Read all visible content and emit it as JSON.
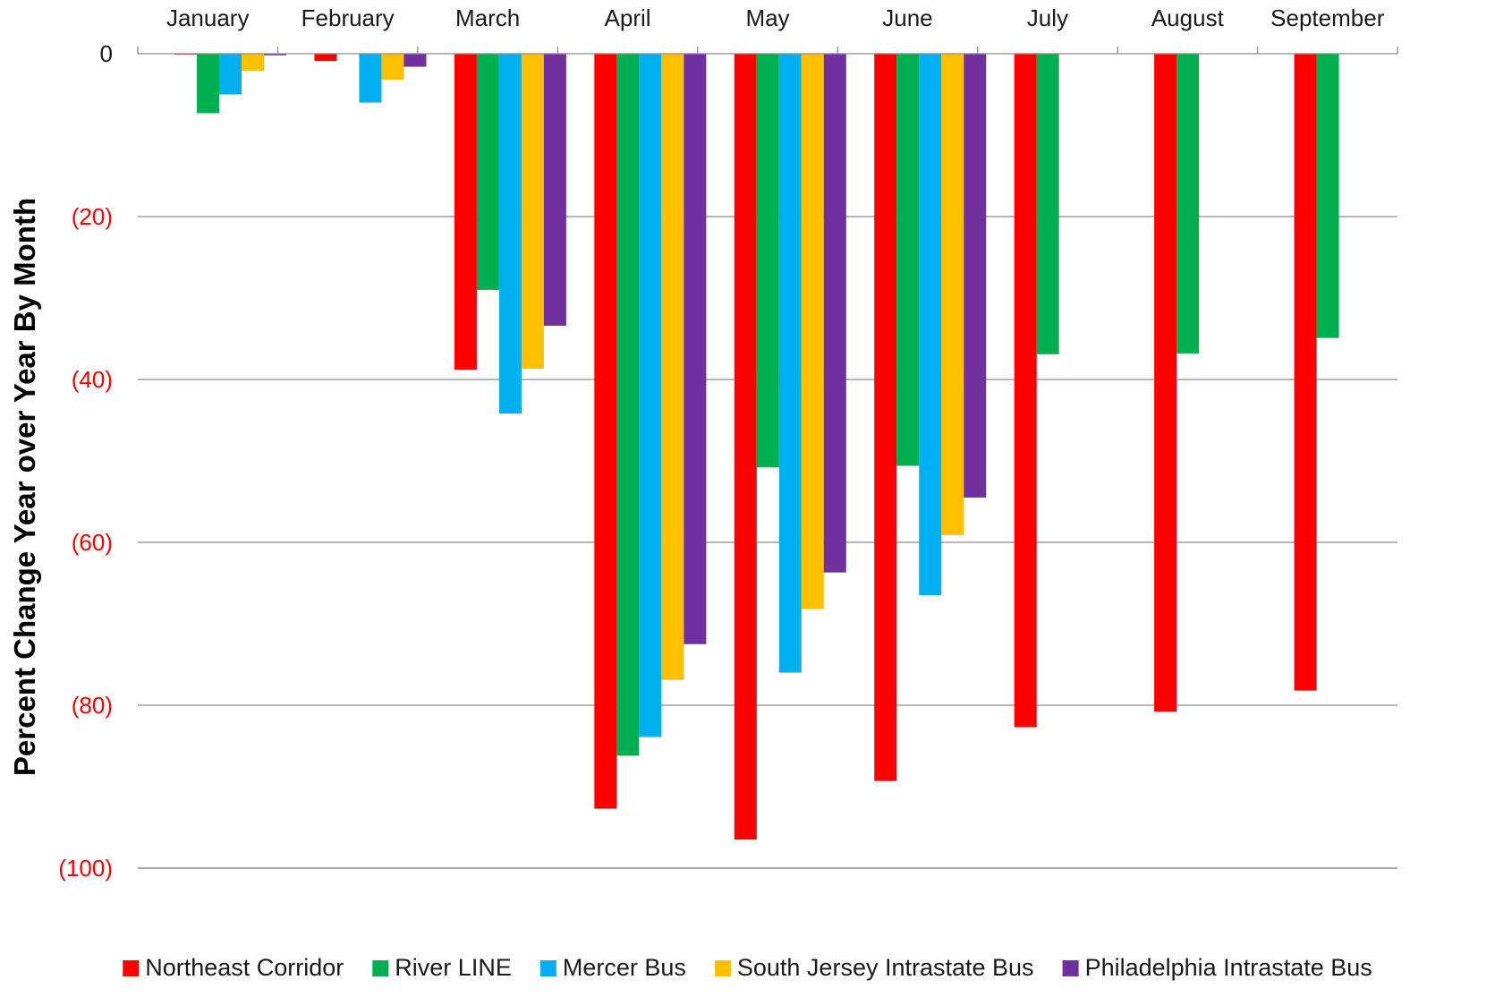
{
  "chart_data": {
    "type": "bar",
    "title": "",
    "xlabel": "",
    "ylabel": "Percent Change Year over Year By Month",
    "ylim": [
      -100,
      0
    ],
    "y_ticks": [
      {
        "value": 0,
        "label": "0"
      },
      {
        "value": -20,
        "label": "(20)"
      },
      {
        "value": -40,
        "label": "(40)"
      },
      {
        "value": -60,
        "label": "(60)"
      },
      {
        "value": -80,
        "label": "(80)"
      },
      {
        "value": -100,
        "label": "(100)"
      }
    ],
    "categories": [
      "January",
      "February",
      "March",
      "April",
      "May",
      "June",
      "July",
      "August",
      "September"
    ],
    "x_axis_position": "top",
    "grid": true,
    "legend_position": "bottom",
    "series": [
      {
        "name": "Northeast Corridor",
        "color": "#ff0000",
        "values": [
          -0.1,
          -0.9,
          -38.8,
          -92.7,
          -96.5,
          -89.3,
          -82.7,
          -80.8,
          -78.2
        ]
      },
      {
        "name": "River LINE",
        "color": "#00b050",
        "values": [
          -7.3,
          null,
          -29.0,
          -86.2,
          -50.8,
          -50.6,
          -36.9,
          -36.8,
          -34.9
        ]
      },
      {
        "name": "Mercer Bus",
        "color": "#00b0f0",
        "values": [
          -5.0,
          -6.0,
          -44.2,
          -83.9,
          -76.0,
          -66.5,
          null,
          null,
          null
        ]
      },
      {
        "name": "South Jersey Intrastate Bus",
        "color": "#ffc000",
        "values": [
          -2.1,
          -3.2,
          -38.7,
          -76.9,
          -68.2,
          -59.1,
          null,
          null,
          null
        ]
      },
      {
        "name": "Philadelphia Intrastate Bus",
        "color": "#7030a0",
        "values": [
          -0.2,
          -1.6,
          -33.4,
          -72.5,
          -63.7,
          -54.5,
          null,
          null,
          null
        ]
      }
    ],
    "colors": {
      "grid": "#8c8c8c",
      "axis": "#8c8c8c",
      "negative_tick": "#ff0000",
      "zero_tick": "#1a1a1a",
      "text": "#1a1a1a"
    }
  }
}
